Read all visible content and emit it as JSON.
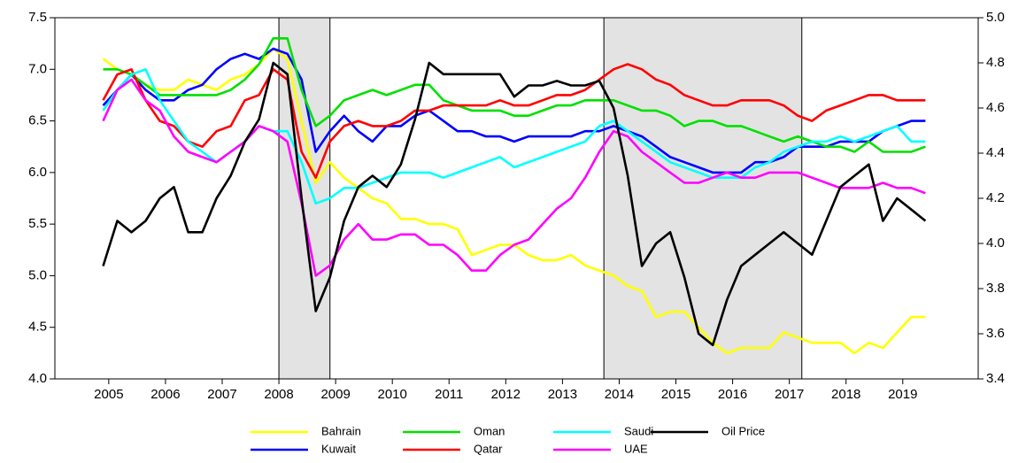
{
  "chart_data": {
    "type": "line",
    "x": [
      2004.9,
      2005.15,
      2005.4,
      2005.65,
      2005.9,
      2006.15,
      2006.4,
      2006.65,
      2006.9,
      2007.15,
      2007.4,
      2007.65,
      2007.9,
      2008.15,
      2008.4,
      2008.65,
      2008.9,
      2009.15,
      2009.4,
      2009.65,
      2009.9,
      2010.15,
      2010.4,
      2010.65,
      2010.9,
      2011.15,
      2011.4,
      2011.65,
      2011.9,
      2012.15,
      2012.4,
      2012.65,
      2012.9,
      2013.15,
      2013.4,
      2013.65,
      2013.9,
      2014.15,
      2014.4,
      2014.65,
      2014.9,
      2015.15,
      2015.4,
      2015.65,
      2015.9,
      2016.15,
      2016.4,
      2016.65,
      2016.9,
      2017.15,
      2017.4,
      2017.65,
      2017.9,
      2018.15,
      2018.4,
      2018.65,
      2018.9,
      2019.15,
      2019.4
    ],
    "series": [
      {
        "name": "Bahrain",
        "color": "#ffff00",
        "values": [
          7.1,
          7.0,
          6.95,
          6.85,
          6.8,
          6.8,
          6.9,
          6.85,
          6.8,
          6.9,
          6.95,
          7.05,
          7.2,
          7.1,
          6.5,
          5.9,
          6.1,
          5.95,
          5.85,
          5.75,
          5.7,
          5.55,
          5.55,
          5.5,
          5.5,
          5.45,
          5.2,
          5.25,
          5.3,
          5.3,
          5.2,
          5.15,
          5.15,
          5.2,
          5.1,
          5.05,
          5.0,
          4.9,
          4.85,
          4.6,
          4.65,
          4.65,
          4.5,
          4.35,
          4.25,
          4.3,
          4.3,
          4.3,
          4.45,
          4.4,
          4.35,
          4.35,
          4.35,
          4.25,
          4.35,
          4.3,
          4.45,
          4.6,
          4.6
        ]
      },
      {
        "name": "Kuwait",
        "color": "#0000ff",
        "values": [
          6.65,
          6.8,
          6.95,
          6.8,
          6.7,
          6.7,
          6.8,
          6.85,
          7.0,
          7.1,
          7.15,
          7.1,
          7.2,
          7.15,
          6.9,
          6.2,
          6.4,
          6.55,
          6.4,
          6.3,
          6.45,
          6.45,
          6.55,
          6.6,
          6.5,
          6.4,
          6.4,
          6.35,
          6.35,
          6.3,
          6.35,
          6.35,
          6.35,
          6.35,
          6.4,
          6.4,
          6.45,
          6.4,
          6.35,
          6.25,
          6.15,
          6.1,
          6.05,
          6.0,
          6.0,
          6.0,
          6.1,
          6.1,
          6.15,
          6.25,
          6.25,
          6.25,
          6.3,
          6.3,
          6.3,
          6.4,
          6.45,
          6.5,
          6.5
        ]
      },
      {
        "name": "Oman",
        "color": "#00e000",
        "values": [
          7.0,
          7.0,
          6.95,
          6.85,
          6.75,
          6.75,
          6.75,
          6.75,
          6.75,
          6.8,
          6.9,
          7.05,
          7.3,
          7.3,
          6.8,
          6.45,
          6.55,
          6.7,
          6.75,
          6.8,
          6.75,
          6.8,
          6.85,
          6.85,
          6.7,
          6.65,
          6.6,
          6.6,
          6.6,
          6.55,
          6.55,
          6.6,
          6.65,
          6.65,
          6.7,
          6.7,
          6.7,
          6.65,
          6.6,
          6.6,
          6.55,
          6.45,
          6.5,
          6.5,
          6.45,
          6.45,
          6.4,
          6.35,
          6.3,
          6.35,
          6.3,
          6.25,
          6.25,
          6.2,
          6.3,
          6.2,
          6.2,
          6.2,
          6.25
        ]
      },
      {
        "name": "Qatar",
        "color": "#ff0000",
        "values": [
          6.7,
          6.95,
          7.0,
          6.7,
          6.5,
          6.45,
          6.3,
          6.25,
          6.4,
          6.45,
          6.7,
          6.75,
          7.0,
          6.9,
          6.2,
          5.95,
          6.3,
          6.45,
          6.5,
          6.45,
          6.45,
          6.5,
          6.6,
          6.6,
          6.65,
          6.65,
          6.65,
          6.65,
          6.7,
          6.65,
          6.65,
          6.7,
          6.75,
          6.75,
          6.8,
          6.9,
          7.0,
          7.05,
          7.0,
          6.9,
          6.85,
          6.75,
          6.7,
          6.65,
          6.65,
          6.7,
          6.7,
          6.7,
          6.65,
          6.55,
          6.5,
          6.6,
          6.65,
          6.7,
          6.75,
          6.75,
          6.7,
          6.7,
          6.7
        ]
      },
      {
        "name": "Saudi",
        "color": "#00ffff",
        "values": [
          6.6,
          6.8,
          6.95,
          7.0,
          6.7,
          6.5,
          6.3,
          6.2,
          6.1,
          6.2,
          6.3,
          6.45,
          6.4,
          6.4,
          6.1,
          5.7,
          5.75,
          5.85,
          5.85,
          5.9,
          5.95,
          6.0,
          6.0,
          6.0,
          5.95,
          6.0,
          6.05,
          6.1,
          6.15,
          6.05,
          6.1,
          6.15,
          6.2,
          6.25,
          6.3,
          6.45,
          6.5,
          6.4,
          6.3,
          6.2,
          6.1,
          6.05,
          6.0,
          5.95,
          5.95,
          5.95,
          6.05,
          6.1,
          6.2,
          6.25,
          6.3,
          6.3,
          6.35,
          6.3,
          6.35,
          6.4,
          6.45,
          6.3,
          6.3
        ]
      },
      {
        "name": "UAE",
        "color": "#ff00ff",
        "values": [
          6.5,
          6.8,
          6.9,
          6.7,
          6.6,
          6.35,
          6.2,
          6.15,
          6.1,
          6.2,
          6.3,
          6.45,
          6.4,
          6.3,
          5.7,
          5.0,
          5.1,
          5.35,
          5.5,
          5.35,
          5.35,
          5.4,
          5.4,
          5.3,
          5.3,
          5.2,
          5.05,
          5.05,
          5.2,
          5.3,
          5.35,
          5.5,
          5.65,
          5.75,
          5.95,
          6.2,
          6.4,
          6.35,
          6.2,
          6.1,
          6.0,
          5.9,
          5.9,
          5.95,
          6.0,
          5.95,
          5.95,
          6.0,
          6.0,
          6.0,
          5.95,
          5.9,
          5.85,
          5.85,
          5.85,
          5.9,
          5.85,
          5.85,
          5.8
        ]
      },
      {
        "name": "Oil Price",
        "color": "#000000",
        "axis": "y2",
        "values": [
          3.9,
          4.1,
          4.05,
          4.1,
          4.2,
          4.25,
          4.05,
          4.05,
          4.2,
          4.3,
          4.45,
          4.55,
          4.8,
          4.75,
          4.2,
          3.7,
          3.85,
          4.1,
          4.25,
          4.3,
          4.25,
          4.35,
          4.55,
          4.8,
          4.75,
          4.75,
          4.75,
          4.75,
          4.75,
          4.65,
          4.7,
          4.7,
          4.72,
          4.7,
          4.7,
          4.72,
          4.6,
          4.3,
          3.9,
          4.0,
          4.05,
          3.85,
          3.6,
          3.55,
          3.75,
          3.9,
          3.95,
          4.0,
          4.05,
          4.0,
          3.95,
          4.1,
          4.25,
          4.3,
          4.35,
          4.1,
          4.2,
          4.15,
          4.1
        ]
      }
    ],
    "shaded_regions": [
      [
        2008.0,
        2008.9
      ],
      [
        2013.73,
        2017.22
      ]
    ],
    "xlim": [
      2004.05,
      2020.33
    ],
    "xticks": [
      2005,
      2006,
      2007,
      2008,
      2009,
      2010,
      2011,
      2012,
      2013,
      2014,
      2015,
      2016,
      2017,
      2018,
      2019
    ],
    "ylim": [
      4.0,
      7.5
    ],
    "yticks": [
      {
        "value": 4,
        "label": "4.0"
      },
      4.5,
      {
        "value": 5,
        "label": "5.0"
      },
      5.5,
      {
        "value": 6,
        "label": "6.0"
      },
      6.5,
      {
        "value": 7,
        "label": "7.0"
      },
      7.5
    ],
    "y2lim": [
      3.4,
      5.0
    ],
    "y2ticks": [
      3.4,
      3.6,
      3.8,
      {
        "value": 4,
        "label": "4.0"
      },
      4.2,
      4.4,
      4.6,
      4.8,
      {
        "value": 5,
        "label": "5.0"
      }
    ],
    "legend": "bottom"
  }
}
